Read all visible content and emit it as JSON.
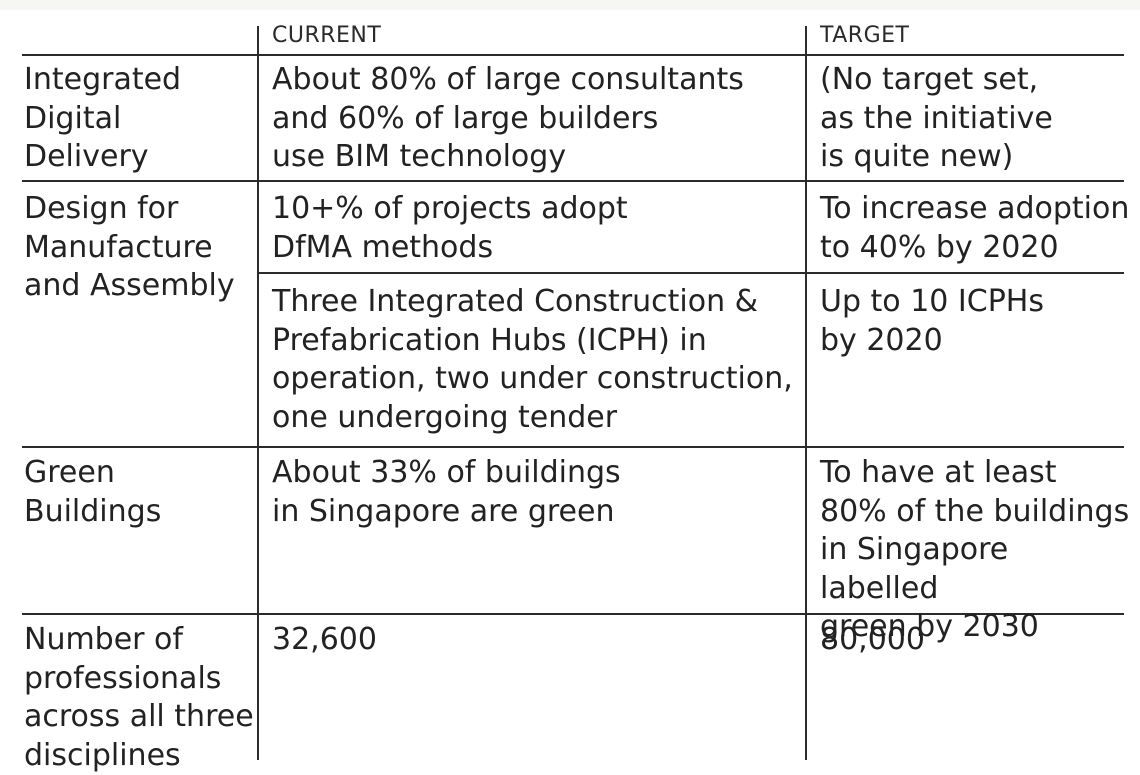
{
  "table": {
    "headers": {
      "current": "CURRENT",
      "target": "TARGET"
    },
    "rows": [
      {
        "label": "Integrated\nDigital Delivery",
        "entries": [
          {
            "current": "About 80% of large consultants\nand 60% of large builders\nuse BIM technology",
            "target": "(No target set,\nas the initiative\nis quite new)"
          }
        ]
      },
      {
        "label": "Design for\nManufacture\nand Assembly",
        "entries": [
          {
            "current": "10+% of projects adopt\nDfMA methods",
            "target": "To increase adoption\nto 40% by 2020"
          },
          {
            "current": "Three Integrated Construction &\nPrefabrication Hubs (ICPH) in\noperation, two under construction,\none undergoing tender",
            "target": "Up to 10 ICPHs\nby 2020"
          }
        ]
      },
      {
        "label": "Green\nBuildings",
        "entries": [
          {
            "current": "About 33% of buildings\nin Singapore are green",
            "target": "To have at least\n80% of the buildings\nin Singapore labelled\ngreen by 2030"
          }
        ]
      },
      {
        "label": "Number of\nprofessionals\nacross all three\ndisciplines",
        "entries": [
          {
            "current": "32,600",
            "target": "80,000"
          }
        ]
      }
    ]
  }
}
